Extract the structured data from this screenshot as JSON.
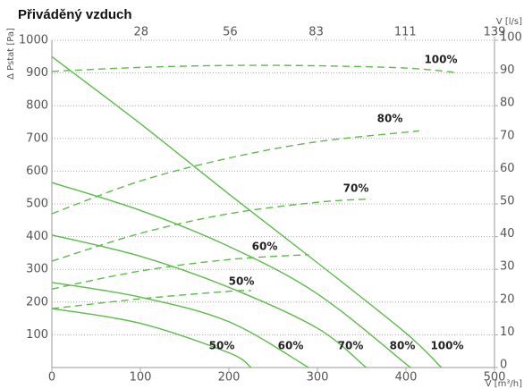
{
  "chart_data": {
    "type": "line",
    "title": "Přiváděný vzduch",
    "y_label": "Δ Pstat [Pa]",
    "x_label": "V [m³/h]",
    "x2_label": "V [l/s]",
    "xlim": [
      0,
      500
    ],
    "xticks": [
      0,
      100,
      200,
      300,
      400,
      500
    ],
    "x2lim": [
      0,
      139
    ],
    "x2ticks": [
      28,
      56,
      83,
      111,
      139
    ],
    "ylim": [
      0,
      1000
    ],
    "yticks": [
      100,
      200,
      300,
      400,
      500,
      600,
      700,
      800,
      900,
      1000
    ],
    "y2lim": [
      0,
      100
    ],
    "y2ticks": [
      0,
      10,
      20,
      30,
      40,
      50,
      60,
      70,
      80,
      90,
      100
    ],
    "grid": true,
    "series": [
      {
        "name": "100%",
        "style": "solid",
        "color": "#5dbb4a",
        "x": [
          0,
          100,
          200,
          300,
          400,
          440
        ],
        "values": [
          950,
          745,
          530,
          320,
          105,
          0
        ]
      },
      {
        "name": "80%",
        "style": "solid",
        "color": "#5dbb4a",
        "x": [
          0,
          100,
          200,
          300,
          405
        ],
        "values": [
          565,
          480,
          370,
          225,
          0
        ]
      },
      {
        "name": "70%",
        "style": "solid",
        "color": "#5dbb4a",
        "x": [
          0,
          100,
          200,
          300,
          355
        ],
        "values": [
          405,
          340,
          245,
          120,
          0
        ]
      },
      {
        "name": "60%",
        "style": "solid",
        "color": "#5dbb4a",
        "x": [
          0,
          100,
          200,
          290
        ],
        "values": [
          260,
          215,
          140,
          0
        ]
      },
      {
        "name": "50%",
        "style": "solid",
        "color": "#5dbb4a",
        "x": [
          0,
          100,
          200,
          225
        ],
        "values": [
          180,
          135,
          45,
          0
        ]
      },
      {
        "name": "100%",
        "style": "dashed",
        "axis": "y2",
        "color": "#5dbb4a",
        "x": [
          0,
          100,
          200,
          300,
          400,
          455
        ],
        "values": [
          90.5,
          91.7,
          92.3,
          92.2,
          91.5,
          90.2
        ]
      },
      {
        "name": "80%",
        "style": "dashed",
        "axis": "y2",
        "color": "#5dbb4a",
        "x": [
          0,
          100,
          200,
          300,
          415
        ],
        "values": [
          47,
          57,
          64,
          69,
          72.3
        ]
      },
      {
        "name": "70%",
        "style": "dashed",
        "axis": "y2",
        "color": "#5dbb4a",
        "x": [
          0,
          100,
          200,
          300,
          360
        ],
        "values": [
          32.5,
          41,
          47,
          50.5,
          51.5
        ]
      },
      {
        "name": "60%",
        "style": "dashed",
        "axis": "y2",
        "color": "#5dbb4a",
        "x": [
          0,
          100,
          200,
          290
        ],
        "values": [
          24,
          29.5,
          33,
          34.5
        ]
      },
      {
        "name": "50%",
        "style": "dashed",
        "axis": "y2",
        "color": "#5dbb4a",
        "x": [
          0,
          100,
          200,
          225
        ],
        "values": [
          18,
          21,
          23.3,
          23.5
        ]
      }
    ]
  }
}
